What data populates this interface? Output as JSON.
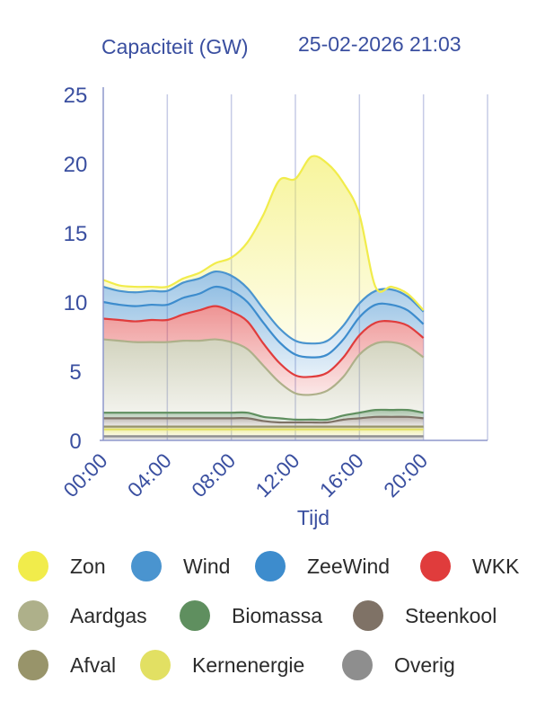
{
  "header": {
    "title": "Capaciteit (GW)",
    "timestamp": "25-02-2026 21:03"
  },
  "chart_data": {
    "type": "area",
    "stacked": true,
    "title": "Capaciteit (GW)",
    "xlabel": "Tijd",
    "ylabel": "",
    "ylim": [
      0,
      25
    ],
    "xlim": [
      0,
      24
    ],
    "y_ticks": [
      "0",
      "5",
      "10",
      "15",
      "20",
      "25"
    ],
    "x_ticks": [
      {
        "t": 0,
        "label": "00:00"
      },
      {
        "t": 4,
        "label": "04:00"
      },
      {
        "t": 8,
        "label": "08:00"
      },
      {
        "t": 12,
        "label": "12:00"
      },
      {
        "t": 16,
        "label": "16:00"
      },
      {
        "t": 20,
        "label": "20:00"
      }
    ],
    "x": [
      0,
      1,
      2,
      3,
      4,
      5,
      6,
      7,
      8,
      9,
      10,
      11,
      12,
      13,
      14,
      15,
      16,
      17,
      18,
      19,
      20
    ],
    "series": [
      {
        "name": "Overig",
        "color": "#8e8e8e",
        "values": [
          0.3,
          0.3,
          0.3,
          0.3,
          0.3,
          0.3,
          0.3,
          0.3,
          0.3,
          0.3,
          0.3,
          0.3,
          0.3,
          0.3,
          0.3,
          0.3,
          0.3,
          0.3,
          0.3,
          0.3,
          0.3
        ]
      },
      {
        "name": "Kernenergie",
        "color": "#e2e063",
        "values": [
          0.5,
          0.5,
          0.5,
          0.5,
          0.5,
          0.5,
          0.5,
          0.5,
          0.5,
          0.5,
          0.5,
          0.5,
          0.5,
          0.5,
          0.5,
          0.5,
          0.5,
          0.5,
          0.5,
          0.5,
          0.5
        ]
      },
      {
        "name": "Afval",
        "color": "#98946a",
        "values": [
          0.2,
          0.2,
          0.2,
          0.2,
          0.2,
          0.2,
          0.2,
          0.2,
          0.2,
          0.2,
          0.2,
          0.2,
          0.2,
          0.2,
          0.2,
          0.2,
          0.2,
          0.2,
          0.2,
          0.2,
          0.2
        ]
      },
      {
        "name": "Steenkool",
        "color": "#7f7266",
        "values": [
          0.6,
          0.6,
          0.6,
          0.6,
          0.6,
          0.6,
          0.6,
          0.6,
          0.6,
          0.6,
          0.4,
          0.3,
          0.3,
          0.3,
          0.3,
          0.5,
          0.6,
          0.7,
          0.7,
          0.7,
          0.6
        ]
      },
      {
        "name": "Biomassa",
        "color": "#5f8f5f",
        "values": [
          0.4,
          0.4,
          0.4,
          0.4,
          0.4,
          0.4,
          0.4,
          0.4,
          0.4,
          0.4,
          0.3,
          0.3,
          0.2,
          0.2,
          0.2,
          0.3,
          0.4,
          0.5,
          0.5,
          0.5,
          0.4
        ]
      },
      {
        "name": "Aardgas",
        "color": "#aeb08a",
        "values": [
          5.3,
          5.2,
          5.1,
          5.1,
          5.1,
          5.2,
          5.2,
          5.3,
          5.1,
          4.6,
          3.7,
          2.6,
          1.9,
          1.8,
          2.1,
          2.8,
          4.2,
          4.8,
          4.9,
          4.6,
          4.0
        ]
      },
      {
        "name": "WKK",
        "color": "#e03c3c",
        "values": [
          1.5,
          1.5,
          1.5,
          1.6,
          1.6,
          1.9,
          2.2,
          2.4,
          2.2,
          2.0,
          1.6,
          1.4,
          1.3,
          1.3,
          1.3,
          1.4,
          1.4,
          1.5,
          1.5,
          1.5,
          1.4
        ]
      },
      {
        "name": "ZeeWind",
        "color": "#3d8ccd",
        "values": [
          1.2,
          1.1,
          1.1,
          1.1,
          1.1,
          1.2,
          1.2,
          1.4,
          1.5,
          1.4,
          1.5,
          1.5,
          1.5,
          1.4,
          1.3,
          1.3,
          1.3,
          1.3,
          1.2,
          1.1,
          1.0
        ]
      },
      {
        "name": "Wind",
        "color": "#4a94cf",
        "values": [
          1.1,
          1.0,
          1.0,
          1.0,
          1.0,
          1.1,
          1.1,
          1.1,
          1.1,
          1.0,
          1.0,
          1.0,
          1.0,
          1.0,
          1.0,
          1.0,
          1.0,
          1.0,
          1.1,
          1.0,
          0.9
        ]
      },
      {
        "name": "Zon",
        "color": "#f1ec4b",
        "values": [
          0.5,
          0.4,
          0.4,
          0.3,
          0.3,
          0.3,
          0.4,
          0.6,
          1.3,
          3.3,
          6.8,
          10.7,
          11.7,
          13.5,
          12.8,
          10.3,
          6.4,
          0.3,
          0.2,
          0.2,
          0.1
        ]
      }
    ]
  },
  "legend": {
    "items": [
      {
        "label": "Zon",
        "color": "#f1ec4b"
      },
      {
        "label": "Wind",
        "color": "#4a94cf"
      },
      {
        "label": "ZeeWind",
        "color": "#3d8ccd"
      },
      {
        "label": "WKK",
        "color": "#e03c3c"
      },
      {
        "label": "Aardgas",
        "color": "#aeb08a"
      },
      {
        "label": "Biomassa",
        "color": "#5f8f5f"
      },
      {
        "label": "Steenkool",
        "color": "#7f7266"
      },
      {
        "label": "Afval",
        "color": "#98946a"
      },
      {
        "label": "Kernenergie",
        "color": "#e2e063"
      },
      {
        "label": "Overig",
        "color": "#8e8e8e"
      }
    ]
  }
}
